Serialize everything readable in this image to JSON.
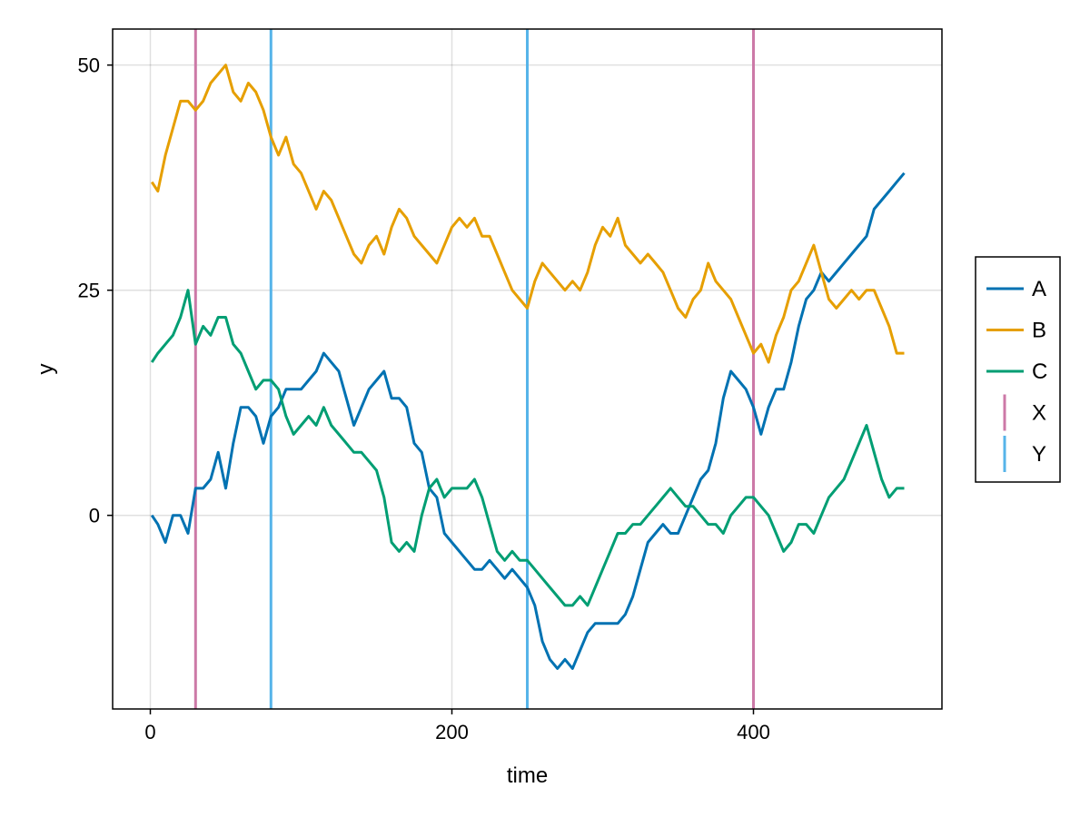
{
  "chart_data": {
    "type": "line",
    "title": "",
    "xlabel": "time",
    "ylabel": "y",
    "xlim": [
      -25,
      525
    ],
    "ylim": [
      -21.5,
      54
    ],
    "x_ticks": [
      0,
      200,
      400
    ],
    "y_ticks": [
      0,
      25,
      50
    ],
    "grid": true,
    "legend_position": "right",
    "colors": {
      "A": "#0072b2",
      "B": "#e69f00",
      "C": "#009e73",
      "X": "#cc79a7",
      "Y": "#56b4e9"
    },
    "series": [
      {
        "name": "A",
        "x": [
          1,
          5,
          10,
          15,
          20,
          25,
          30,
          35,
          40,
          45,
          50,
          55,
          60,
          65,
          70,
          75,
          80,
          85,
          90,
          95,
          100,
          105,
          110,
          115,
          120,
          125,
          130,
          135,
          140,
          145,
          150,
          155,
          160,
          165,
          170,
          175,
          180,
          185,
          190,
          195,
          200,
          205,
          210,
          215,
          220,
          225,
          230,
          235,
          240,
          245,
          250,
          255,
          260,
          265,
          270,
          275,
          280,
          285,
          290,
          295,
          300,
          305,
          310,
          315,
          320,
          325,
          330,
          335,
          340,
          345,
          350,
          355,
          360,
          365,
          370,
          375,
          380,
          385,
          390,
          395,
          400,
          405,
          410,
          415,
          420,
          425,
          430,
          435,
          440,
          445,
          450,
          455,
          460,
          465,
          470,
          475,
          480,
          485,
          490,
          495,
          500
        ],
        "y": [
          0,
          -1,
          -3,
          0,
          0,
          -2,
          3,
          3,
          4,
          7,
          3,
          8,
          12,
          12,
          11,
          8,
          11,
          12,
          14,
          14,
          14,
          15,
          16,
          18,
          17,
          16,
          13,
          10,
          12,
          14,
          15,
          16,
          13,
          13,
          12,
          8,
          7,
          3,
          2,
          -2,
          -3,
          -4,
          -5,
          -6,
          -6,
          -5,
          -6,
          -7,
          -6,
          -7,
          -8,
          -10,
          -14,
          -16,
          -17,
          -16,
          -17,
          -15,
          -13,
          -12,
          -12,
          -12,
          -12,
          -11,
          -9,
          -6,
          -3,
          -2,
          -1,
          -2,
          -2,
          0,
          2,
          4,
          5,
          8,
          13,
          16,
          15,
          14,
          12,
          9,
          12,
          14,
          14,
          17,
          21,
          24,
          25,
          27,
          26,
          27,
          28,
          29,
          30,
          31,
          34,
          35,
          36,
          37,
          38
        ]
      },
      {
        "name": "B",
        "x": [
          1,
          5,
          10,
          15,
          20,
          25,
          30,
          35,
          40,
          45,
          50,
          55,
          60,
          65,
          70,
          75,
          80,
          85,
          90,
          95,
          100,
          105,
          110,
          115,
          120,
          125,
          130,
          135,
          140,
          145,
          150,
          155,
          160,
          165,
          170,
          175,
          180,
          185,
          190,
          195,
          200,
          205,
          210,
          215,
          220,
          225,
          230,
          235,
          240,
          245,
          250,
          255,
          260,
          265,
          270,
          275,
          280,
          285,
          290,
          295,
          300,
          305,
          310,
          315,
          320,
          325,
          330,
          335,
          340,
          345,
          350,
          355,
          360,
          365,
          370,
          375,
          380,
          385,
          390,
          395,
          400,
          405,
          410,
          415,
          420,
          425,
          430,
          435,
          440,
          445,
          450,
          455,
          460,
          465,
          470,
          475,
          480,
          485,
          490,
          495,
          500
        ],
        "y": [
          37,
          36,
          40,
          43,
          46,
          46,
          45,
          46,
          48,
          49,
          50,
          47,
          46,
          48,
          47,
          45,
          42,
          40,
          42,
          39,
          38,
          36,
          34,
          36,
          35,
          33,
          31,
          29,
          28,
          30,
          31,
          29,
          32,
          34,
          33,
          31,
          30,
          29,
          28,
          30,
          32,
          33,
          32,
          33,
          31,
          31,
          29,
          27,
          25,
          24,
          23,
          26,
          28,
          27,
          26,
          25,
          26,
          25,
          27,
          30,
          32,
          31,
          33,
          30,
          29,
          28,
          29,
          28,
          27,
          25,
          23,
          22,
          24,
          25,
          28,
          26,
          25,
          24,
          22,
          20,
          18,
          19,
          17,
          20,
          22,
          25,
          26,
          28,
          30,
          27,
          24,
          23,
          24,
          25,
          24,
          25,
          25,
          23,
          21,
          18,
          18
        ]
      },
      {
        "name": "C",
        "x": [
          1,
          5,
          10,
          15,
          20,
          25,
          30,
          35,
          40,
          45,
          50,
          55,
          60,
          65,
          70,
          75,
          80,
          85,
          90,
          95,
          100,
          105,
          110,
          115,
          120,
          125,
          130,
          135,
          140,
          145,
          150,
          155,
          160,
          165,
          170,
          175,
          180,
          185,
          190,
          195,
          200,
          205,
          210,
          215,
          220,
          225,
          230,
          235,
          240,
          245,
          250,
          255,
          260,
          265,
          270,
          275,
          280,
          285,
          290,
          295,
          300,
          305,
          310,
          315,
          320,
          325,
          330,
          335,
          340,
          345,
          350,
          355,
          360,
          365,
          370,
          375,
          380,
          385,
          390,
          395,
          400,
          405,
          410,
          415,
          420,
          425,
          430,
          435,
          440,
          445,
          450,
          455,
          460,
          465,
          470,
          475,
          480,
          485,
          490,
          495,
          500
        ],
        "y": [
          17,
          18,
          19,
          20,
          22,
          25,
          19,
          21,
          20,
          22,
          22,
          19,
          18,
          16,
          14,
          15,
          15,
          14,
          11,
          9,
          10,
          11,
          10,
          12,
          10,
          9,
          8,
          7,
          7,
          6,
          5,
          2,
          -3,
          -4,
          -3,
          -4,
          0,
          3,
          4,
          2,
          3,
          3,
          3,
          4,
          2,
          -1,
          -4,
          -5,
          -4,
          -5,
          -5,
          -6,
          -7,
          -8,
          -9,
          -10,
          -10,
          -9,
          -10,
          -8,
          -6,
          -4,
          -2,
          -2,
          -1,
          -1,
          0,
          1,
          2,
          3,
          2,
          1,
          1,
          0,
          -1,
          -1,
          -2,
          0,
          1,
          2,
          2,
          1,
          0,
          -2,
          -4,
          -3,
          -1,
          -1,
          -2,
          0,
          2,
          3,
          4,
          6,
          8,
          10,
          7,
          4,
          2,
          3,
          3
        ]
      }
    ],
    "vlines": [
      {
        "name": "X",
        "x": [
          30,
          400
        ]
      },
      {
        "name": "Y",
        "x": [
          80,
          250
        ]
      }
    ]
  }
}
